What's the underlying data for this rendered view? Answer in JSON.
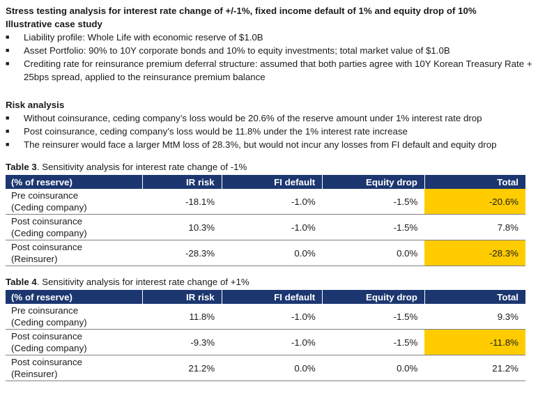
{
  "title": "Stress testing analysis for interest rate change of +/-1%, fixed income default of 1% and equity drop of 10%",
  "case_study": {
    "heading": "Illustrative case study",
    "bullet_glyph": "■",
    "items": [
      "Liability profile: Whole Life with economic reserve of $1.0B",
      "Asset Portfolio: 90% to 10Y corporate bonds and 10% to equity investments; total market value of $1.0B",
      "Crediting rate for reinsurance premium deferral structure: assumed that both parties agree with 10Y Korean Treasury Rate + 25bps spread, applied to the reinsurance premium balance"
    ]
  },
  "risk_analysis": {
    "heading": "Risk analysis",
    "items": [
      "Without coinsurance, ceding company’s loss would be 20.6% of the reserve amount under 1% interest rate drop",
      "Post coinsurance, ceding company’s loss would be 11.8% under the 1% interest rate increase",
      "The reinsurer would face a larger MtM loss of 28.3%, but would not incur any losses from FI default and equity drop"
    ]
  },
  "colors": {
    "header_bg": "#1c3770",
    "highlight": "#ffcc00"
  },
  "table3": {
    "caption_label": "Table 3",
    "caption_text": ". Sensitivity analysis for interest rate change of -1%",
    "headers": [
      "(% of reserve)",
      "IR risk",
      "FI default",
      "Equity drop",
      "Total"
    ],
    "rows": [
      {
        "label1": "Pre coinsurance",
        "label2": "(Ceding company)",
        "values": [
          "-18.1%",
          "-1.0%",
          "-1.5%",
          "-20.6%"
        ],
        "highlight_total": true
      },
      {
        "label1": "Post coinsurance",
        "label2": "(Ceding company)",
        "values": [
          "10.3%",
          "-1.0%",
          "-1.5%",
          "7.8%"
        ],
        "highlight_total": false
      },
      {
        "label1": "Post coinsurance",
        "label2": "(Reinsurer)",
        "values": [
          "-28.3%",
          "0.0%",
          "0.0%",
          "-28.3%"
        ],
        "highlight_total": true
      }
    ]
  },
  "table4": {
    "caption_label": "Table 4",
    "caption_text": ". Sensitivity analysis for interest rate change of +1%",
    "headers": [
      "(% of reserve)",
      "IR risk",
      "FI default",
      "Equity drop",
      "Total"
    ],
    "rows": [
      {
        "label1": "Pre coinsurance",
        "label2": "(Ceding company)",
        "values": [
          "11.8%",
          "-1.0%",
          "-1.5%",
          "9.3%"
        ],
        "highlight_total": false
      },
      {
        "label1": "Post coinsurance",
        "label2": "(Ceding company)",
        "values": [
          "-9.3%",
          "-1.0%",
          "-1.5%",
          "-11.8%"
        ],
        "highlight_total": true
      },
      {
        "label1": "Post coinsurance",
        "label2": "(Reinsurer)",
        "values": [
          "21.2%",
          "0.0%",
          "0.0%",
          "21.2%"
        ],
        "highlight_total": false
      }
    ]
  }
}
